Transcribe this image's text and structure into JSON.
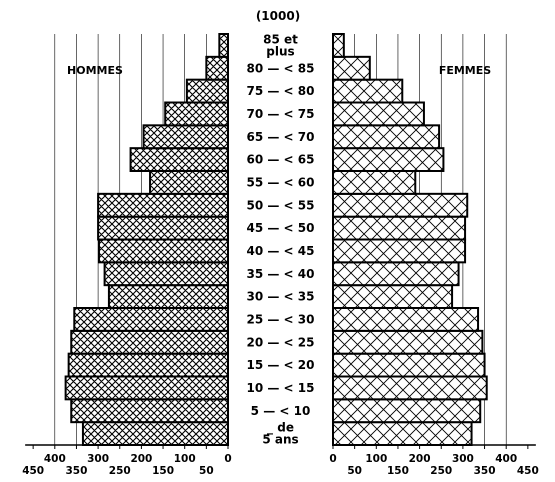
{
  "chart_data": {
    "type": "bar",
    "unit": "(1000)",
    "categories": [
      "_ de 5 ans",
      "5 — < 10",
      "10 — < 15",
      "15 — < 20",
      "20 — < 25",
      "25 — < 30",
      "30 — < 35",
      "35 — < 40",
      "40 — < 45",
      "45 — < 50",
      "50 — < 55",
      "55 — < 60",
      "60 — < 65",
      "65 — < 70",
      "70 — < 75",
      "75 — < 80",
      "80 — < 85",
      "85 et plus"
    ],
    "category_labels": [
      {
        "lines": [
          "_ de",
          "5 ans"
        ]
      },
      {
        "lines": [
          "5 — < 10"
        ]
      },
      {
        "lines": [
          "10 — < 15"
        ]
      },
      {
        "lines": [
          "15 — < 20"
        ]
      },
      {
        "lines": [
          "20 — < 25"
        ]
      },
      {
        "lines": [
          "25 — < 30"
        ]
      },
      {
        "lines": [
          "30 — < 35"
        ]
      },
      {
        "lines": [
          "35 — < 40"
        ]
      },
      {
        "lines": [
          "40 — < 45"
        ]
      },
      {
        "lines": [
          "45 — < 50"
        ]
      },
      {
        "lines": [
          "50 — < 55"
        ]
      },
      {
        "lines": [
          "55 — < 60"
        ]
      },
      {
        "lines": [
          "60 — < 65"
        ]
      },
      {
        "lines": [
          "65 — < 70"
        ]
      },
      {
        "lines": [
          "70 — < 75"
        ]
      },
      {
        "lines": [
          "75 — < 80"
        ]
      },
      {
        "lines": [
          "80 — < 85"
        ]
      },
      {
        "lines": [
          "85 et",
          "plus"
        ]
      }
    ],
    "series": [
      {
        "name": "HOMMES",
        "values": [
          335,
          362,
          375,
          368,
          362,
          355,
          275,
          285,
          298,
          300,
          300,
          180,
          225,
          195,
          145,
          95,
          50,
          20
        ]
      },
      {
        "name": "FEMMES",
        "values": [
          320,
          340,
          355,
          350,
          345,
          335,
          275,
          290,
          305,
          305,
          310,
          190,
          255,
          245,
          210,
          160,
          85,
          25
        ]
      }
    ],
    "xlim": [
      0,
      450
    ],
    "left_tick_labels": [
      "450",
      "400",
      "350",
      "300",
      "250",
      "200",
      "150",
      "100",
      "50",
      "0"
    ],
    "right_tick_labels": [
      "0",
      "50",
      "100",
      "150",
      "200",
      "250",
      "300",
      "350",
      "400",
      "450"
    ],
    "grid": true
  }
}
